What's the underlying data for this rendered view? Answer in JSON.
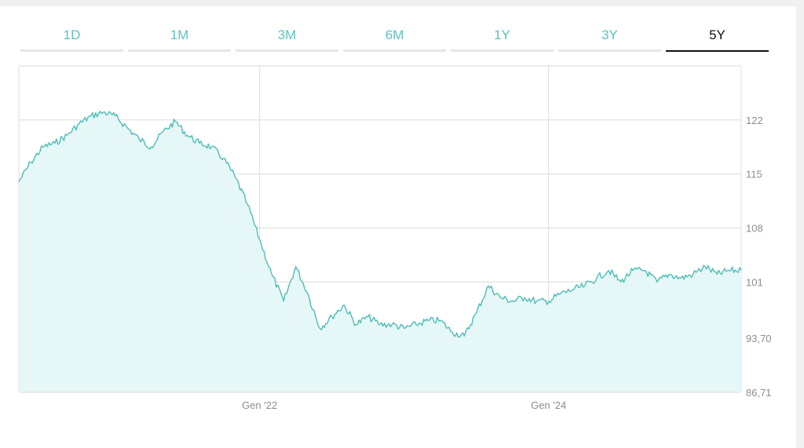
{
  "tabs": [
    {
      "label": "1D",
      "active": false
    },
    {
      "label": "1M",
      "active": false
    },
    {
      "label": "3M",
      "active": false
    },
    {
      "label": "6M",
      "active": false
    },
    {
      "label": "1Y",
      "active": false
    },
    {
      "label": "3Y",
      "active": false
    },
    {
      "label": "5Y",
      "active": true
    }
  ],
  "colors": {
    "accent": "#5ec3c0",
    "line": "#4dbdb8",
    "fill": "#e6f7f7",
    "grid": "#dcdcdc",
    "active_tab": "#111111"
  },
  "chart_data": {
    "type": "area",
    "title": "",
    "xlabel": "",
    "ylabel": "",
    "y_ticks": [
      "86,71",
      "93,70",
      "101",
      "108",
      "115",
      "122"
    ],
    "y_tick_values": [
      86.71,
      93.7,
      101,
      108,
      115,
      122
    ],
    "x_ticks": [
      "Gen '22",
      "Gen '24"
    ],
    "x_tick_values": [
      "2022-01",
      "2024-01"
    ],
    "ylim": [
      86.71,
      129
    ],
    "xlim": [
      "2020-05",
      "2025-05"
    ],
    "grid": true,
    "series": [
      {
        "x": [
          "2020-05",
          "2020-06",
          "2020-07",
          "2020-08",
          "2020-09",
          "2020-10",
          "2020-11",
          "2020-12",
          "2021-01",
          "2021-02",
          "2021-03",
          "2021-04",
          "2021-05",
          "2021-06",
          "2021-07",
          "2021-08",
          "2021-09",
          "2021-10",
          "2021-11",
          "2021-12",
          "2022-01",
          "2022-02",
          "2022-03",
          "2022-04",
          "2022-05",
          "2022-06",
          "2022-07",
          "2022-08",
          "2022-09",
          "2022-10",
          "2022-11",
          "2022-12",
          "2023-01",
          "2023-02",
          "2023-03",
          "2023-04",
          "2023-05",
          "2023-06",
          "2023-07",
          "2023-08",
          "2023-09",
          "2023-10",
          "2023-11",
          "2023-12",
          "2024-01",
          "2024-02",
          "2024-03",
          "2024-04",
          "2024-05",
          "2024-06",
          "2024-07",
          "2024-08",
          "2024-09",
          "2024-10",
          "2024-11",
          "2024-12",
          "2025-01",
          "2025-02",
          "2025-03",
          "2025-04",
          "2025-05"
        ],
        "values": [
          114.0,
          116.5,
          118.5,
          119.0,
          120.0,
          121.5,
          122.5,
          123.0,
          122.5,
          121.0,
          119.5,
          118.5,
          120.5,
          121.8,
          120.0,
          119.0,
          118.5,
          117.0,
          114.5,
          111.0,
          106.5,
          102.0,
          98.5,
          103.0,
          99.5,
          95.0,
          96.5,
          98.0,
          95.5,
          96.5,
          95.5,
          95.5,
          95.0,
          95.5,
          96.0,
          96.0,
          94.5,
          94.0,
          97.0,
          100.5,
          99.0,
          98.5,
          99.0,
          98.5,
          98.5,
          99.5,
          100.0,
          100.5,
          101.5,
          102.5,
          101.0,
          102.5,
          102.5,
          101.0,
          102.0,
          101.5,
          102.0,
          103.0,
          102.0,
          102.5,
          102.5
        ]
      }
    ]
  }
}
